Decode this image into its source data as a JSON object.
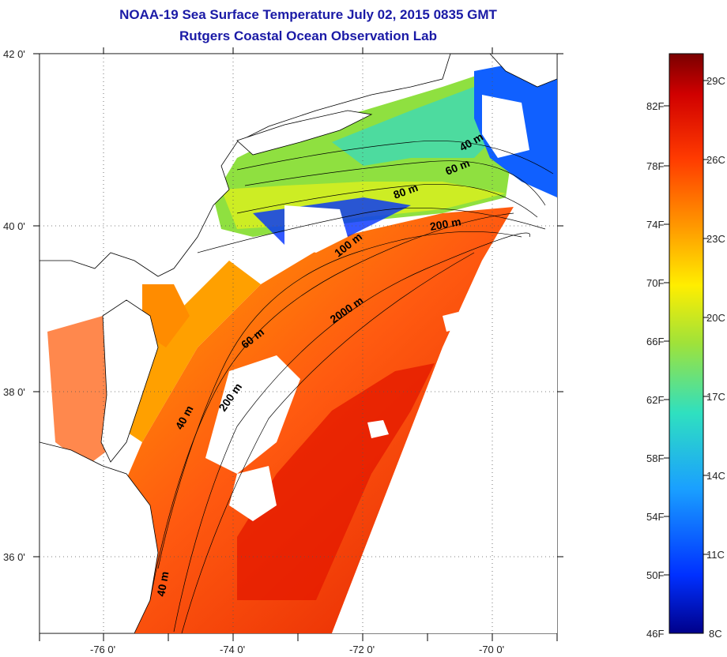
{
  "header": {
    "title": "NOAA-19 Sea Surface Temperature July 02, 2015 0835 GMT",
    "subtitle": "Rutgers Coastal Ocean Observation Lab"
  },
  "map": {
    "lat_labels": [
      "42 0'",
      "40 0'",
      "38 0'",
      "36 0'"
    ],
    "lon_labels": [
      "-76 0'",
      "-74 0'",
      "-72 0'",
      "-70 0'"
    ],
    "depth_contours": [
      "40 m",
      "60 m",
      "80 m",
      "200 m",
      "100 m",
      "60 m",
      "2000 m",
      "200 m",
      "40 m",
      "40 m"
    ],
    "colors": {
      "land": "#ffffff",
      "coastline": "#000000",
      "cloud": "#ffffff"
    }
  },
  "colorbar": {
    "fahrenheit_labels": [
      "82F",
      "78F",
      "74F",
      "70F",
      "66F",
      "62F",
      "58F",
      "54F",
      "50F",
      "46F"
    ],
    "celsius_labels": [
      "29C",
      "26C",
      "23C",
      "20C",
      "17C",
      "14C",
      "11C",
      "8C"
    ],
    "stops": [
      "#7a0000",
      "#d00000",
      "#ff3a00",
      "#ff9a00",
      "#ffee00",
      "#9fe23a",
      "#2fe0c0",
      "#1aa0ff",
      "#0030ff",
      "#00008a"
    ]
  }
}
